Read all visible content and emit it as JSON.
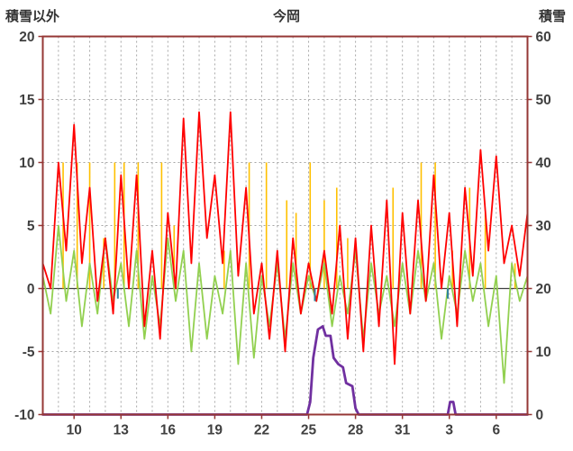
{
  "header": {
    "left_axis_title": "積雪以外",
    "title": "今岡",
    "right_axis_title": "積雪"
  },
  "chart_data": {
    "type": "line",
    "title": "今岡",
    "left_axis": {
      "label": "積雪以外",
      "min": -10,
      "max": 20,
      "ticks": [
        20,
        15,
        10,
        5,
        0,
        -5,
        -10
      ]
    },
    "right_axis": {
      "label": "積雪",
      "min": 0,
      "max": 60,
      "ticks": [
        60,
        50,
        40,
        30,
        20,
        10,
        0
      ]
    },
    "x_axis": {
      "min": 8,
      "max": 39,
      "tick_positions": [
        10,
        13,
        16,
        19,
        22,
        25,
        28,
        31,
        34,
        37
      ],
      "tick_labels": [
        "10",
        "13",
        "16",
        "19",
        "22",
        "25",
        "28",
        "31",
        "3",
        "6"
      ],
      "day_gridlines": true
    },
    "colors": {
      "red": "#FF0000",
      "green": "#92D050",
      "orange": "#FFC000",
      "purple": "#7030A0",
      "blue": "#31849B",
      "border": "#953735",
      "grid": "#A6A6A6",
      "zero_line": "#404040",
      "text": "#404040"
    },
    "series": [
      {
        "name": "orange-precip-impulses",
        "type": "impulse",
        "axis": "left",
        "color_key": "orange",
        "width": 1.6,
        "baseline": 0,
        "points": [
          [
            9.3,
            10
          ],
          [
            10.2,
            10
          ],
          [
            11.0,
            10
          ],
          [
            11.9,
            4
          ],
          [
            12.6,
            10
          ],
          [
            13.2,
            10
          ],
          [
            14.1,
            10
          ],
          [
            15.6,
            10
          ],
          [
            16.4,
            5
          ],
          [
            19.6,
            3
          ],
          [
            21.2,
            10
          ],
          [
            22.3,
            10
          ],
          [
            23.6,
            7
          ],
          [
            24.2,
            6
          ],
          [
            25.1,
            10
          ],
          [
            26.0,
            7
          ],
          [
            26.8,
            8
          ],
          [
            27.5,
            4
          ],
          [
            30.4,
            8
          ],
          [
            32.2,
            10
          ],
          [
            33.1,
            10
          ],
          [
            34.2,
            3
          ],
          [
            35.3,
            8
          ],
          [
            36.3,
            6
          ],
          [
            38.2,
            2
          ]
        ]
      },
      {
        "name": "green-series",
        "type": "sampled",
        "axis": "left",
        "color_key": "green",
        "width": 1.8,
        "x_start": 8,
        "x_step": 0.5,
        "values": [
          1,
          -2,
          5,
          -1,
          3,
          -3,
          2,
          -2,
          4,
          -1,
          2,
          -3,
          3,
          -4,
          1,
          -3,
          4,
          -1,
          3,
          -5,
          2,
          -4,
          1,
          -2,
          3,
          -6,
          2,
          -5.5,
          1,
          -3,
          2,
          -4,
          2,
          -2,
          1,
          -1,
          2,
          -3,
          1,
          -2,
          3,
          -4,
          2,
          -2,
          1,
          -3,
          2,
          -2,
          3,
          -1,
          2,
          -4,
          1,
          -2,
          3,
          -1,
          2,
          -3,
          1,
          -7.5,
          2,
          -1,
          1
        ]
      },
      {
        "name": "red-series",
        "type": "sampled",
        "axis": "left",
        "color_key": "red",
        "width": 1.8,
        "x_start": 8,
        "x_step": 0.5,
        "values": [
          2,
          0,
          10,
          3,
          13,
          2,
          8,
          -1,
          4,
          -2,
          9,
          0,
          9,
          -3,
          3,
          -4,
          6,
          0,
          13.5,
          2,
          14,
          4,
          9,
          2,
          14,
          1,
          8,
          -2,
          2,
          -4,
          3,
          -5,
          4,
          -2,
          2,
          -1,
          3,
          -2,
          5,
          -4,
          4,
          -5,
          5,
          -3,
          7,
          -6,
          6,
          -2,
          7,
          -1,
          9,
          0,
          6,
          -3,
          8,
          1,
          11,
          3,
          10.5,
          2,
          5,
          1,
          6
        ]
      },
      {
        "name": "blue-marks",
        "type": "impulse",
        "axis": "left",
        "color_key": "blue",
        "width": 2,
        "baseline": 0,
        "points": [
          [
            12.8,
            -0.8
          ],
          [
            25.4,
            -1.0
          ],
          [
            33.9,
            -0.8
          ]
        ]
      },
      {
        "name": "purple-snow-depth",
        "type": "line",
        "axis": "right",
        "color_key": "purple",
        "width": 2.8,
        "points": [
          [
            8,
            0
          ],
          [
            24.9,
            0
          ],
          [
            25.1,
            2
          ],
          [
            25.3,
            9
          ],
          [
            25.6,
            13.5
          ],
          [
            25.9,
            14
          ],
          [
            26.1,
            12.5
          ],
          [
            26.4,
            12.5
          ],
          [
            26.6,
            9
          ],
          [
            26.9,
            8
          ],
          [
            27.2,
            7.5
          ],
          [
            27.4,
            5
          ],
          [
            27.8,
            4.5
          ],
          [
            28.0,
            1
          ],
          [
            28.2,
            0
          ],
          [
            33.9,
            0
          ],
          [
            34.05,
            2
          ],
          [
            34.25,
            2
          ],
          [
            34.4,
            0
          ],
          [
            39,
            0
          ]
        ]
      }
    ]
  }
}
